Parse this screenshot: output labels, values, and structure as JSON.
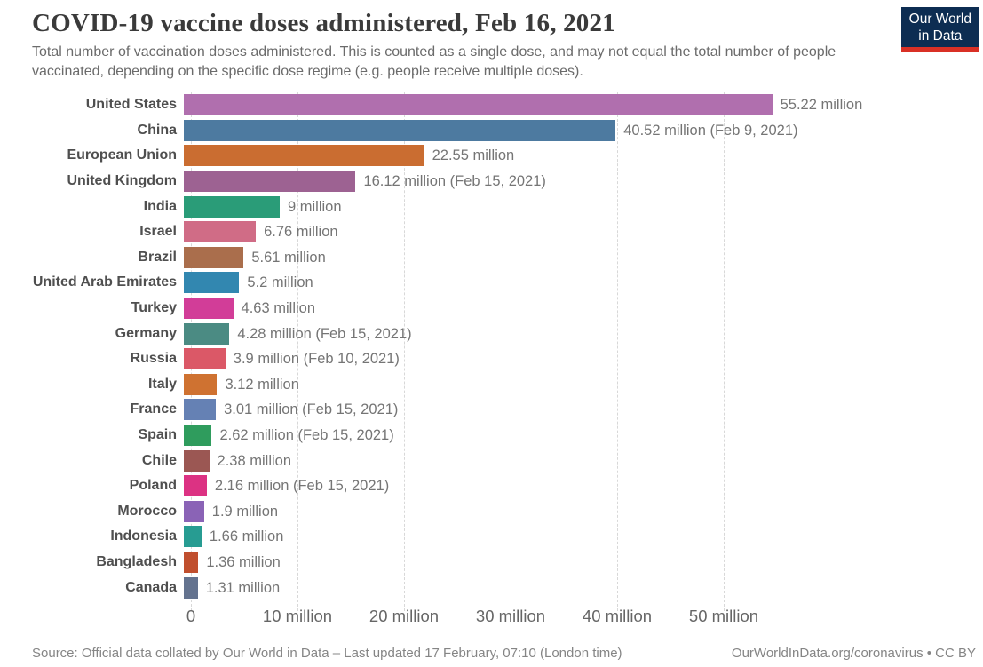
{
  "header": {
    "title": "COVID-19 vaccine doses administered, Feb 16, 2021",
    "subtitle": "Total number of vaccination doses administered. This is counted as a single dose, and may not equal the total number of people vaccinated, depending on the specific dose regime (e.g. people receive multiple doses).",
    "logo": {
      "line1": "Our World",
      "line2": "in Data",
      "bg_color": "#0d2d52",
      "accent_color": "#d93025"
    }
  },
  "chart_data": {
    "type": "bar",
    "orientation": "horizontal",
    "title": "COVID-19 vaccine doses administered, Feb 16, 2021",
    "xlabel": "",
    "ylabel": "",
    "unit": "million doses",
    "xlim": [
      0,
      57
    ],
    "grid": "dashed-vertical",
    "categories": [
      "United States",
      "China",
      "European Union",
      "United Kingdom",
      "India",
      "Israel",
      "Brazil",
      "United Arab Emirates",
      "Turkey",
      "Germany",
      "Russia",
      "Italy",
      "France",
      "Spain",
      "Chile",
      "Poland",
      "Morocco",
      "Indonesia",
      "Bangladesh",
      "Canada"
    ],
    "values": [
      55.22,
      40.52,
      22.55,
      16.12,
      9,
      6.76,
      5.61,
      5.2,
      4.63,
      4.28,
      3.9,
      3.12,
      3.01,
      2.62,
      2.38,
      2.16,
      1.9,
      1.66,
      1.36,
      1.31
    ],
    "value_labels": [
      "55.22 million",
      "40.52 million (Feb 9, 2021)",
      "22.55 million",
      "16.12 million (Feb 15, 2021)",
      "9 million",
      "6.76 million",
      "5.61 million",
      "5.2 million",
      "4.63 million",
      "4.28 million (Feb 15, 2021)",
      "3.9 million (Feb 10, 2021)",
      "3.12 million",
      "3.01 million (Feb 15, 2021)",
      "2.62 million (Feb 15, 2021)",
      "2.38 million",
      "2.16 million (Feb 15, 2021)",
      "1.9 million",
      "1.66 million",
      "1.36 million",
      "1.31 million"
    ],
    "bar_colors": [
      "#b06fae",
      "#4d7aa0",
      "#ca6d31",
      "#9d6292",
      "#2a9c78",
      "#d06c86",
      "#aa6e4c",
      "#3287b0",
      "#d23d98",
      "#4b8b83",
      "#db5867",
      "#cf7231",
      "#6581b4",
      "#2f9c5d",
      "#9b5753",
      "#dc3283",
      "#8a63b6",
      "#279c92",
      "#c04f2e",
      "#64738f"
    ],
    "xticks": [
      0,
      10,
      20,
      30,
      40,
      50
    ],
    "xtick_labels": [
      "0",
      "10 million",
      "20 million",
      "30 million",
      "40 million",
      "50 million"
    ]
  },
  "footer": {
    "source": "Source: Official data collated by Our World in Data – Last updated 17 February, 07:10 (London time)",
    "link": "OurWorldInData.org/coronavirus • CC BY"
  }
}
